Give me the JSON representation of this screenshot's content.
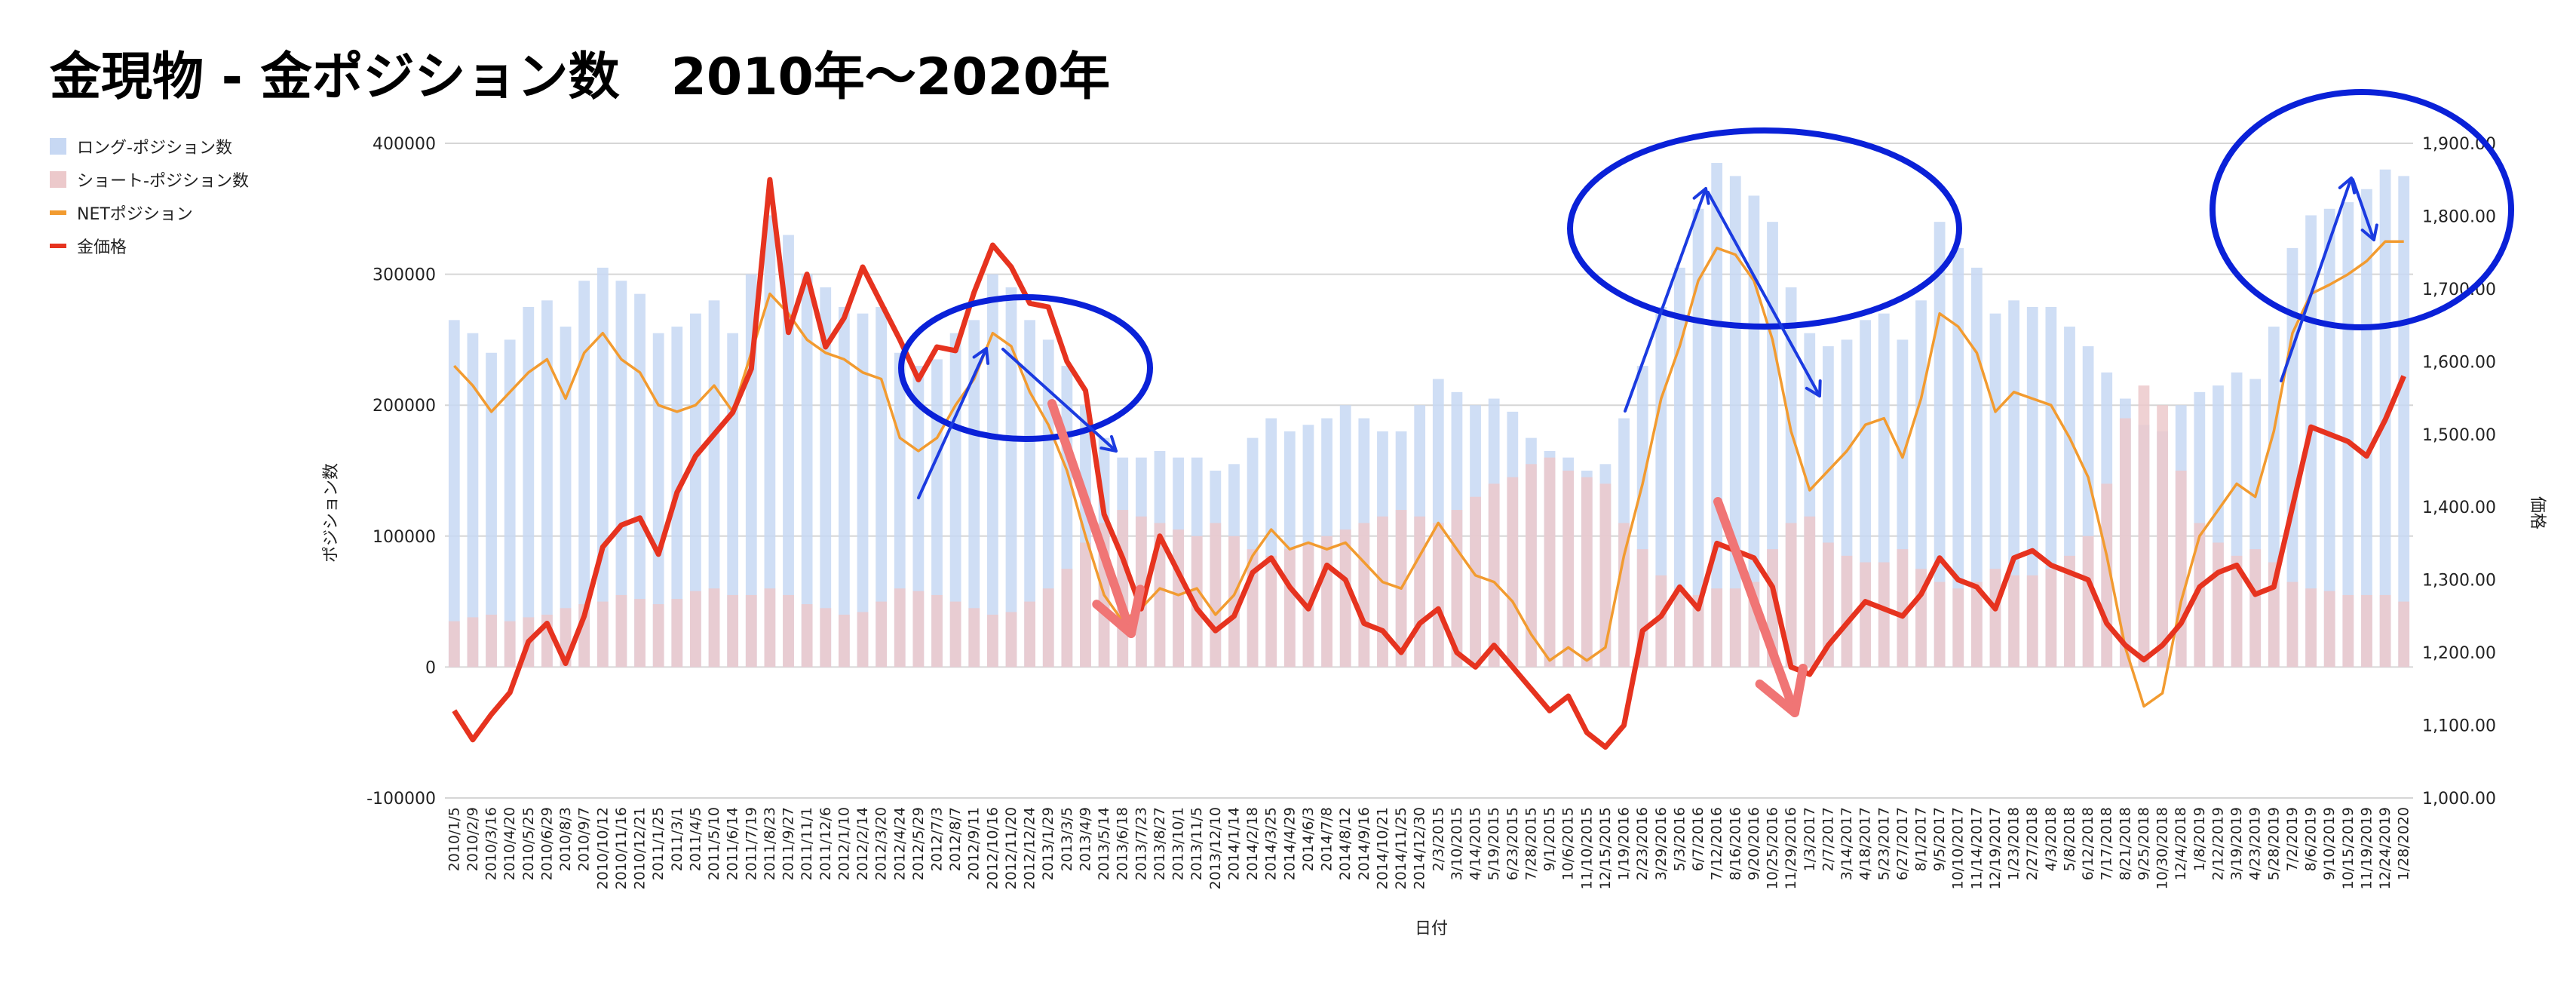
{
  "title": "金現物 - 金ポジション数　2010年〜2020年",
  "legend": [
    {
      "label": "ロング-ポジション数",
      "color": "#c7d8f3",
      "kind": "box"
    },
    {
      "label": "ショート-ポジション数",
      "color": "#ecc9cb",
      "kind": "box"
    },
    {
      "label": "NETポジション",
      "color": "#f29b30",
      "kind": "line"
    },
    {
      "label": "金価格",
      "color": "#e6331f",
      "kind": "line"
    }
  ],
  "colors": {
    "long": "#c7d8f3",
    "short": "#ecc9cb",
    "net": "#f29b30",
    "gold": "#e6331f",
    "annotation_circle": "#0a21d8",
    "annotation_arrow_blue": "#1b3be0",
    "annotation_arrow_red": "#f07575",
    "grid": "#d6d6d6"
  },
  "chart_data": {
    "type": "bar",
    "xlabel": "日付",
    "ylabel": "ポジション数",
    "y2label": "価格",
    "ylim": [
      -100000,
      400000
    ],
    "y2lim": [
      1000,
      1900
    ],
    "yticks": [
      "400000",
      "300000",
      "200000",
      "100000",
      "0",
      "-100000"
    ],
    "y2ticks": [
      "1,900.00",
      "1,800.00",
      "1,700.00",
      "1,600.00",
      "1,500.00",
      "1,400.00",
      "1,300.00",
      "1,200.00",
      "1,100.00",
      "1,000.00"
    ],
    "x_tick_labels": [
      "2010/1/5",
      "2010/2/9",
      "2010/3/16",
      "2010/4/20",
      "2010/5/25",
      "2010/6/29",
      "2010/8/3",
      "2010/9/7",
      "2010/10/12",
      "2010/11/16",
      "2010/12/21",
      "2011/1/25",
      "2011/3/1",
      "2011/4/5",
      "2011/5/10",
      "2011/6/14",
      "2011/7/19",
      "2011/8/23",
      "2011/9/27",
      "2011/11/1",
      "2011/12/6",
      "2012/1/10",
      "2012/2/14",
      "2012/3/20",
      "2012/4/24",
      "2012/5/29",
      "2012/7/3",
      "2012/8/7",
      "2012/9/11",
      "2012/10/16",
      "2012/11/20",
      "2012/12/24",
      "2013/1/29",
      "2013/3/5",
      "2013/4/9",
      "2013/5/14",
      "2013/6/18",
      "2013/7/23",
      "2013/8/27",
      "2013/10/1",
      "2013/11/5",
      "2013/12/10",
      "2014/1/14",
      "2014/2/18",
      "2014/3/25",
      "2014/4/29",
      "2014/6/3",
      "2014/7/8",
      "2014/8/12",
      "2014/9/16",
      "2014/10/21",
      "2014/11/25",
      "2014/12/30",
      "2/3/2015",
      "3/10/2015",
      "4/14/2015",
      "5/19/2015",
      "6/23/2015",
      "7/28/2015",
      "9/1/2015",
      "10/6/2015",
      "11/10/2015",
      "12/15/2015",
      "1/19/2016",
      "2/23/2016",
      "3/29/2016",
      "5/3/2016",
      "6/7/2016",
      "7/12/2016",
      "8/16/2016",
      "9/20/2016",
      "10/25/2016",
      "11/29/2016",
      "1/3/2017",
      "2/7/2017",
      "3/14/2017",
      "4/18/2017",
      "5/23/2017",
      "6/27/2017",
      "8/1/2017",
      "9/5/2017",
      "10/10/2017",
      "11/14/2017",
      "12/19/2017",
      "1/23/2018",
      "2/27/2018",
      "4/3/2018",
      "5/8/2018",
      "6/12/2018",
      "7/17/2018",
      "8/21/2018",
      "9/25/2018",
      "10/30/2018",
      "12/4/2018",
      "1/8/2019",
      "2/12/2019",
      "3/19/2019",
      "4/23/2019",
      "5/28/2019",
      "7/2/2019",
      "8/6/2019",
      "9/10/2019",
      "10/15/2019",
      "11/19/2019",
      "12/24/2019",
      "1/28/2020"
    ],
    "series": [
      {
        "name": "ロング-ポジション数",
        "axis": "left",
        "kind": "bar",
        "values": [
          265000,
          255000,
          240000,
          250000,
          275000,
          280000,
          260000,
          295000,
          305000,
          295000,
          285000,
          255000,
          260000,
          270000,
          280000,
          255000,
          300000,
          345000,
          330000,
          300000,
          290000,
          275000,
          270000,
          275000,
          240000,
          230000,
          235000,
          255000,
          265000,
          300000,
          290000,
          265000,
          250000,
          230000,
          200000,
          175000,
          160000,
          160000,
          165000,
          160000,
          160000,
          150000,
          155000,
          175000,
          190000,
          180000,
          185000,
          190000,
          200000,
          190000,
          180000,
          180000,
          200000,
          220000,
          210000,
          200000,
          205000,
          195000,
          175000,
          165000,
          160000,
          150000,
          155000,
          190000,
          230000,
          275000,
          305000,
          350000,
          385000,
          375000,
          360000,
          340000,
          290000,
          255000,
          245000,
          250000,
          265000,
          270000,
          250000,
          280000,
          340000,
          320000,
          305000,
          270000,
          280000,
          275000,
          275000,
          260000,
          245000,
          225000,
          205000,
          185000,
          180000,
          200000,
          210000,
          215000,
          225000,
          220000,
          260000,
          320000,
          345000,
          350000,
          355000,
          365000,
          380000,
          375000
        ]
      },
      {
        "name": "ショート-ポジション数",
        "axis": "left",
        "kind": "bar",
        "values": [
          35000,
          38000,
          40000,
          35000,
          38000,
          40000,
          45000,
          48000,
          50000,
          55000,
          52000,
          48000,
          52000,
          58000,
          60000,
          55000,
          55000,
          60000,
          55000,
          48000,
          45000,
          40000,
          42000,
          50000,
          60000,
          58000,
          55000,
          50000,
          45000,
          40000,
          42000,
          50000,
          60000,
          75000,
          95000,
          110000,
          120000,
          115000,
          110000,
          105000,
          100000,
          110000,
          100000,
          90000,
          85000,
          90000,
          95000,
          100000,
          105000,
          110000,
          115000,
          120000,
          115000,
          110000,
          120000,
          130000,
          140000,
          145000,
          155000,
          160000,
          150000,
          145000,
          140000,
          110000,
          90000,
          70000,
          60000,
          55000,
          60000,
          60000,
          65000,
          90000,
          110000,
          115000,
          95000,
          85000,
          80000,
          80000,
          90000,
          75000,
          65000,
          60000,
          65000,
          75000,
          70000,
          70000,
          75000,
          85000,
          100000,
          140000,
          190000,
          215000,
          200000,
          150000,
          110000,
          95000,
          85000,
          90000,
          80000,
          65000,
          60000,
          58000,
          55000,
          55000,
          55000,
          50000
        ]
      },
      {
        "name": "NETポジション",
        "axis": "left",
        "kind": "line",
        "values": [
          230000,
          215000,
          195000,
          210000,
          225000,
          235000,
          205000,
          240000,
          255000,
          235000,
          225000,
          200000,
          195000,
          200000,
          215000,
          195000,
          240000,
          285000,
          270000,
          250000,
          240000,
          235000,
          225000,
          220000,
          175000,
          165000,
          175000,
          200000,
          220000,
          255000,
          245000,
          210000,
          185000,
          150000,
          100000,
          55000,
          35000,
          45000,
          60000,
          55000,
          60000,
          40000,
          55000,
          85000,
          105000,
          90000,
          95000,
          90000,
          95000,
          80000,
          65000,
          60000,
          85000,
          110000,
          90000,
          70000,
          65000,
          50000,
          25000,
          5000,
          15000,
          5000,
          15000,
          85000,
          140000,
          205000,
          245000,
          295000,
          320000,
          315000,
          295000,
          250000,
          180000,
          135000,
          150000,
          165000,
          185000,
          190000,
          160000,
          205000,
          270000,
          260000,
          240000,
          195000,
          210000,
          205000,
          200000,
          175000,
          145000,
          85000,
          15000,
          -30000,
          -20000,
          50000,
          100000,
          120000,
          140000,
          130000,
          180000,
          255000,
          285000,
          292000,
          300000,
          310000,
          325000,
          325000
        ]
      },
      {
        "name": "金価格",
        "axis": "right",
        "kind": "line",
        "values": [
          1120,
          1080,
          1115,
          1145,
          1215,
          1240,
          1185,
          1250,
          1345,
          1375,
          1385,
          1335,
          1420,
          1470,
          1500,
          1530,
          1590,
          1850,
          1640,
          1720,
          1620,
          1660,
          1730,
          1680,
          1630,
          1575,
          1620,
          1615,
          1695,
          1760,
          1730,
          1680,
          1675,
          1600,
          1560,
          1390,
          1330,
          1260,
          1360,
          1310,
          1260,
          1230,
          1250,
          1310,
          1330,
          1290,
          1260,
          1320,
          1300,
          1240,
          1230,
          1200,
          1240,
          1260,
          1200,
          1180,
          1210,
          1180,
          1150,
          1120,
          1140,
          1090,
          1070,
          1100,
          1230,
          1250,
          1290,
          1260,
          1350,
          1340,
          1330,
          1290,
          1180,
          1170,
          1210,
          1240,
          1270,
          1260,
          1250,
          1280,
          1330,
          1300,
          1290,
          1260,
          1330,
          1340,
          1320,
          1310,
          1300,
          1240,
          1210,
          1190,
          1210,
          1240,
          1290,
          1310,
          1320,
          1280,
          1290,
          1400,
          1510,
          1500,
          1490,
          1470,
          1520,
          1580
        ]
      }
    ]
  }
}
